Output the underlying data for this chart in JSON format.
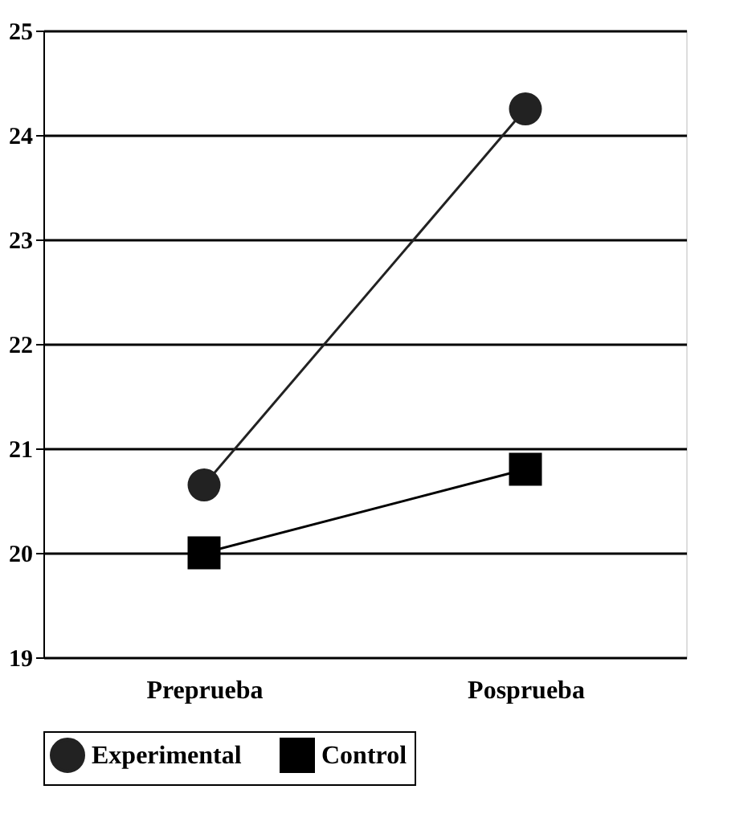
{
  "chart_data": {
    "type": "line",
    "categories": [
      "Preprueba",
      "Posprueba"
    ],
    "series": [
      {
        "name": "Experimental",
        "color": "#222222",
        "values": [
          20.65,
          24.25
        ],
        "marker": "circle"
      },
      {
        "name": "Control",
        "color": "#000000",
        "values": [
          20.0,
          20.8
        ],
        "marker": "square"
      }
    ],
    "ylim": [
      19,
      25
    ],
    "yticks": [
      19,
      20,
      21,
      22,
      23,
      24,
      25
    ],
    "grid": "y",
    "legend": "bottom",
    "line_style": "solid"
  }
}
